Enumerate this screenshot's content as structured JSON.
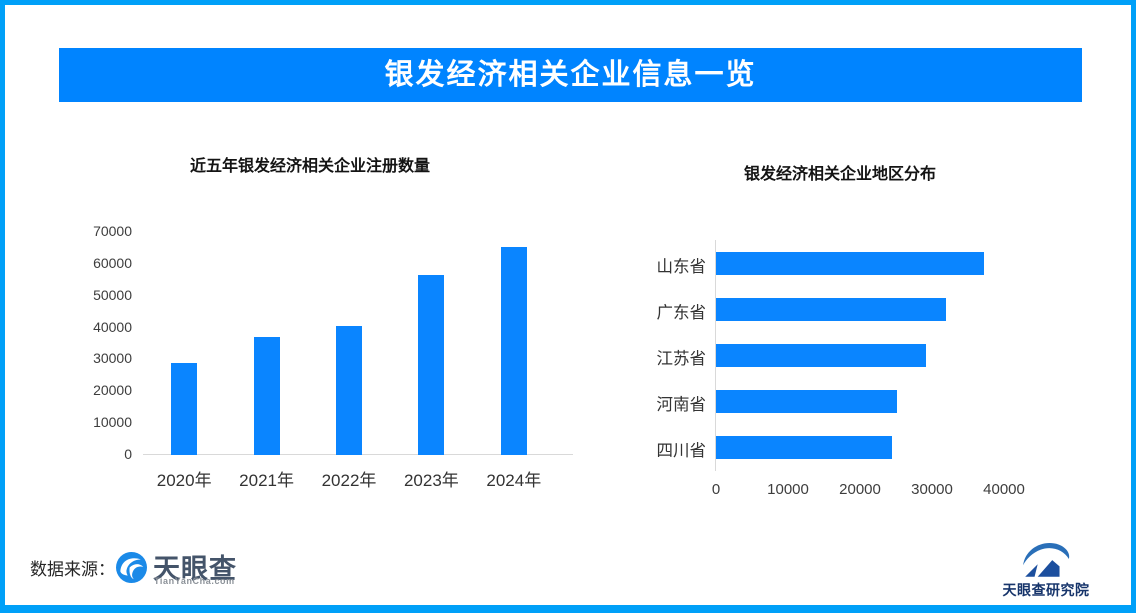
{
  "header": {
    "title": "银发经济相关企业信息一览"
  },
  "footer": {
    "source_label": "数据来源：",
    "brand_name": "天眼查",
    "brand_domain": "TianYanCha.com",
    "research_institute": "天眼查研究院"
  },
  "colors": {
    "frame": "#00a0f8",
    "banner_bg": "#0084ff",
    "banner_text": "#ffffff",
    "bar": "#0a85ff",
    "axis_line": "#d9d9d9",
    "tick_text": "#3d3d3d",
    "brand_text": "#44546a",
    "research_text": "#17356b"
  },
  "chart_data": [
    {
      "type": "bar",
      "orientation": "vertical",
      "title": "近五年银发经济相关企业注册数量",
      "categories": [
        "2020年",
        "2021年",
        "2022年",
        "2023年",
        "2024年"
      ],
      "values": [
        29000,
        36900,
        40400,
        56500,
        65400
      ],
      "xlabel": "",
      "ylabel": "",
      "ylim": [
        0,
        70000
      ],
      "yticks": [
        0,
        10000,
        20000,
        30000,
        40000,
        50000,
        60000,
        70000
      ],
      "grid": false,
      "legend": false,
      "bar_color": "#0a85ff"
    },
    {
      "type": "bar",
      "orientation": "horizontal",
      "title": "银发经济相关企业地区分布",
      "categories": [
        "山东省",
        "广东省",
        "江苏省",
        "河南省",
        "四川省"
      ],
      "values": [
        37200,
        31900,
        29200,
        25200,
        24400
      ],
      "xlabel": "",
      "ylabel": "",
      "xlim": [
        0,
        45000
      ],
      "xticks": [
        0,
        10000,
        20000,
        30000,
        40000
      ],
      "grid": false,
      "legend": false,
      "bar_color": "#0a85ff"
    }
  ]
}
